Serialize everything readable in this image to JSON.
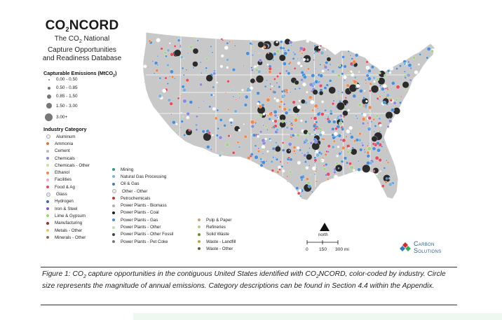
{
  "brand": {
    "name": "CO",
    "sub": "2",
    "suffix": "NCORD"
  },
  "subtitle": {
    "line1_pre": "The CO",
    "line1_sub": "2",
    "line1_post": " National",
    "line2": "Capture Opportunities",
    "line3": "and Readiness Database"
  },
  "size_legend": {
    "title_pre": "Capturable Emissions (MtCO",
    "title_sub": "2",
    "title_post": ")",
    "items": [
      "0.00 - 0.50",
      "0.50 - 0.85",
      "0.85 - 1.50",
      "1.50 - 3.00",
      "3.00+"
    ]
  },
  "category_legend": {
    "title": "Industry Category",
    "col1": [
      {
        "label": "Aluminum",
        "color": "#f2f2f2"
      },
      {
        "label": "Ammonia",
        "color": "#e8743b"
      },
      {
        "label": "Cement",
        "color": "#b9b9b9"
      },
      {
        "label": "Chemicals",
        "color": "#8a8ae0"
      },
      {
        "label": "Chemicals - Other",
        "color": "#c9e3a5"
      },
      {
        "label": "Ethanol",
        "color": "#f08a4b"
      },
      {
        "label": "Facilities",
        "color": "#f5a3c7"
      },
      {
        "label": "Food & Ag",
        "color": "#e84a5f"
      },
      {
        "label": "Glass",
        "color": "#d9ecf5"
      },
      {
        "label": "Hydrogen",
        "color": "#3a68b5"
      },
      {
        "label": "Iron & Steel",
        "color": "#7e57c2"
      },
      {
        "label": "Lime & Gypsum",
        "color": "#a4d65e"
      },
      {
        "label": "Manufacturing",
        "color": "#9c2b3a"
      },
      {
        "label": "Metals - Other",
        "color": "#e8c468"
      },
      {
        "label": "Minerals - Other",
        "color": "#8d6e63"
      }
    ],
    "col2": [
      {
        "label": "Mining",
        "color": "#2a9d8f"
      },
      {
        "label": "Natural Gas Processing",
        "color": "#7fb3d5"
      },
      {
        "label": "Oil & Gas",
        "color": "#4f7ca8"
      },
      {
        "label": "Other - Other",
        "color": "#ececec"
      },
      {
        "label": "Petrochemicals",
        "color": "#c0392b"
      },
      {
        "label": "Power Plants - Biomass",
        "color": "#b0b0b0"
      },
      {
        "label": "Power Plants - Coal",
        "color": "#222222"
      },
      {
        "label": "Power Plants - Gas",
        "color": "#4a90d9"
      },
      {
        "label": "Power Plants - Other",
        "color": "#bfe0b5"
      },
      {
        "label": "Power Plants - Other Fossil",
        "color": "#444444"
      },
      {
        "label": "Power Plants - Pet Coke",
        "color": "#777777"
      }
    ],
    "col3": [
      {
        "label": "Pulp & Paper",
        "color": "#c8a27a"
      },
      {
        "label": "Refineries",
        "color": "#a8d08d"
      },
      {
        "label": "Solid Waste",
        "color": "#6b8e23"
      },
      {
        "label": "Waste - Landfill",
        "color": "#b5a642"
      },
      {
        "label": "Waste - Other",
        "color": "#556b2f"
      }
    ]
  },
  "north_label": "north",
  "scale": {
    "t0": "0",
    "t1": "150",
    "t2": "300 mi"
  },
  "logo": {
    "line1": "Carbon",
    "line2": "Solutions",
    "colors": [
      "#d7262b",
      "#2e7bbf",
      "#39a85a"
    ]
  },
  "caption": {
    "p1": "Figure 1: CO",
    "s1": "2",
    "p2": " capture opportunities in the contiguous United States identified with CO",
    "s2": "2",
    "p3": "NCORD, color-coded by industry. Circle size represents the magnitude of annual emissions. Category descriptions can be found in Section 4.4 within the Appendix."
  },
  "map_colors": {
    "land": "#c8c8c8",
    "border": "#ffffff",
    "gas": "#4a90d9",
    "coal": "#2b2b2b",
    "ethanol": "#f08a4b",
    "refinery": "#a8d08d"
  }
}
